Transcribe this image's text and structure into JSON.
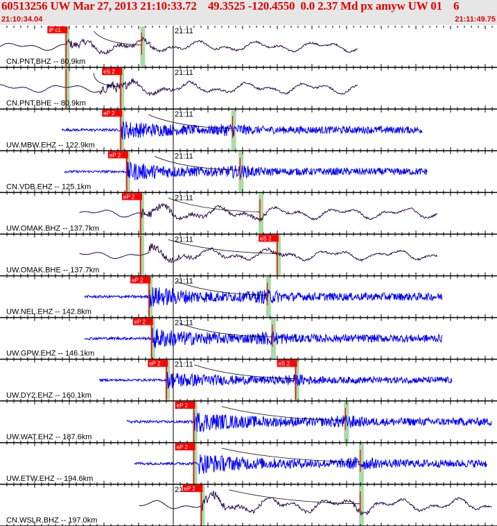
{
  "header": {
    "title": "60513256 UW Mar 27, 2013 21:10:33.72    49.3525 -120.4550  0.0 2.37 Md px amyw UW 01    6",
    "start_time": "21:10:34.04",
    "end_time": "21:11:49.75"
  },
  "colors": {
    "header_bg": "#e6e6e6",
    "header_text": "#e00000",
    "trace_bb": "#2a0a4a",
    "trace_sp": "#0000ff",
    "pick": "#ff0000",
    "window": "#a8dca8"
  },
  "minute_label": "21:11",
  "traces": [
    {
      "label": "CN.PNT.BHZ -- 80.9km",
      "type": "bb",
      "start": 0.0,
      "end": 0.72,
      "ph_p": "iP c1",
      "ph_s": "",
      "p": 0.133,
      "s": 0.285,
      "amp": 0.55,
      "onset": 0.133
    },
    {
      "label": "CN.PNT.BHE -- 80.9km",
      "type": "bb",
      "start": 0.0,
      "end": 0.72,
      "ph_p": "",
      "ph_s": "eS 2",
      "p": 0.133,
      "s": 0.243,
      "amp": 0.6,
      "onset": 0.2
    },
    {
      "label": "UW.MBW.EHZ -- 122.9km",
      "type": "sp",
      "start": 0.125,
      "end": 0.85,
      "ph_p": "eP 2",
      "ph_s": "",
      "p": 0.243,
      "s": 0.468,
      "amp": 0.55,
      "onset": 0.243
    },
    {
      "label": "CN.VDB.EHZ -- 125.1km",
      "type": "sp",
      "start": 0.13,
      "end": 0.86,
      "ph_p": "eP 2",
      "ph_s": "",
      "p": 0.255,
      "s": 0.483,
      "amp": 0.55,
      "onset": 0.255
    },
    {
      "label": "UW.OMAK.BHZ -- 137.7km",
      "type": "bb",
      "start": 0.16,
      "end": 0.88,
      "ph_p": "eP 2",
      "ph_s": "",
      "p": 0.283,
      "s": 0.523,
      "amp": 0.6,
      "onset": 0.283
    },
    {
      "label": "UW.OMAK.BHE -- 137.7km",
      "type": "bb",
      "start": 0.16,
      "end": 0.88,
      "ph_p": "",
      "ph_s": "eS 2",
      "p": 0.283,
      "s": 0.558,
      "amp": 0.55,
      "onset": 0.3
    },
    {
      "label": "UW.NEL.EHZ -- 142.8km",
      "type": "sp",
      "start": 0.17,
      "end": 0.89,
      "ph_p": "eP 2",
      "ph_s": "",
      "p": 0.3,
      "s": 0.538,
      "amp": 0.6,
      "onset": 0.3
    },
    {
      "label": "UW.GPW.EHZ -- 146.1km",
      "type": "sp",
      "start": 0.17,
      "end": 0.89,
      "ph_p": "eP 2",
      "ph_s": "",
      "p": 0.305,
      "s": 0.548,
      "amp": 0.6,
      "onset": 0.305
    },
    {
      "label": "UW.DY2.EHZ -- 160.1km",
      "type": "sp",
      "start": 0.2,
      "end": 0.91,
      "ph_p": "eP 2",
      "ph_s": "eS 2",
      "p": 0.335,
      "s": 0.595,
      "amp": 0.5,
      "onset": 0.335
    },
    {
      "label": "UW.WAT.EHZ -- 187.6km",
      "type": "sp",
      "start": 0.255,
      "end": 0.99,
      "ph_p": "eP 2",
      "ph_s": "",
      "p": 0.39,
      "s": 0.695,
      "amp": 0.6,
      "onset": 0.39
    },
    {
      "label": "UW.ETW.EHZ -- 194.6km",
      "type": "sp",
      "start": 0.27,
      "end": 0.98,
      "ph_p": "eP 2",
      "ph_s": "",
      "p": 0.39,
      "s": 0.725,
      "amp": 0.6,
      "onset": 0.4
    },
    {
      "label": "CN.WSLR.BHZ -- 197.0km",
      "type": "bb",
      "start": 0.28,
      "end": 0.99,
      "ph_p": "eP 2",
      "ph_s": "",
      "p": 0.405,
      "s": 0.725,
      "amp": 0.7,
      "onset": 0.405
    }
  ]
}
